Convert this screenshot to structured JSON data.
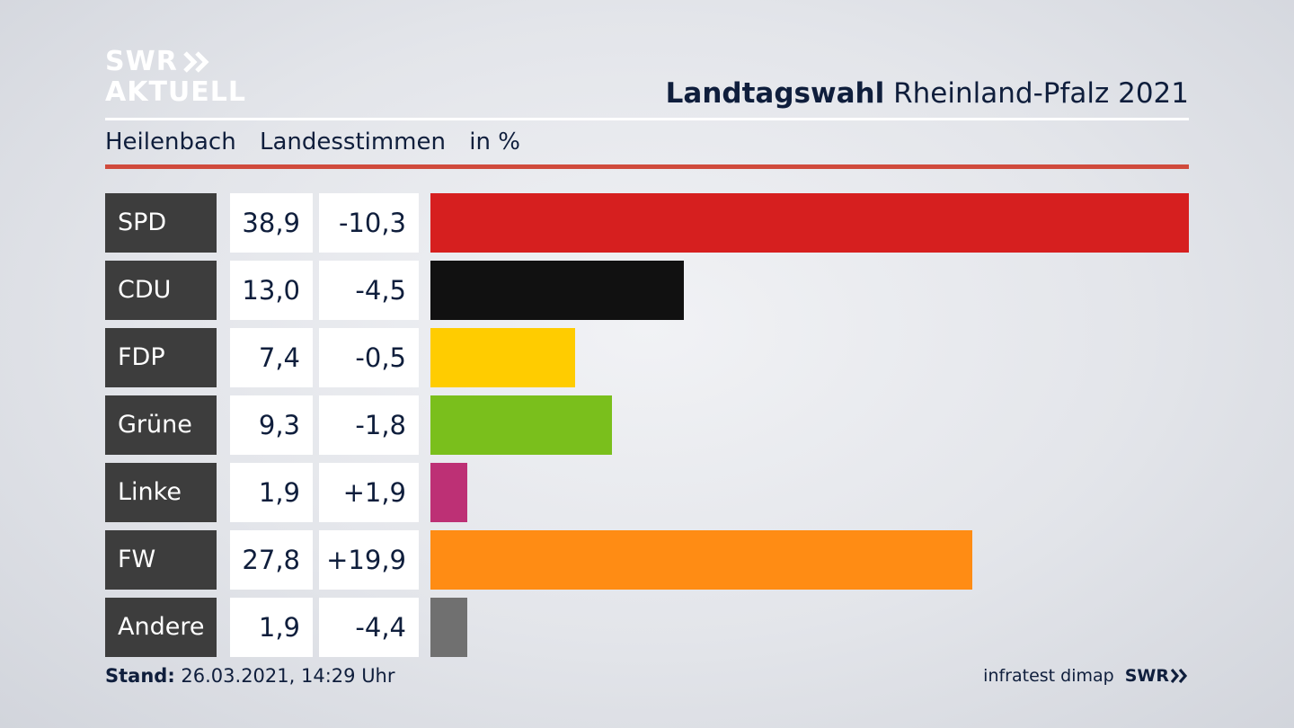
{
  "logo": {
    "line1": "SWR",
    "line2": "AKTUELL"
  },
  "title": {
    "bold": "Landtagswahl",
    "regular": "Rheinland-Pfalz 2021"
  },
  "subtitle": {
    "place": "Heilenbach",
    "kind": "Landesstimmen",
    "unit": "in %"
  },
  "footer": {
    "stand_label": "Stand:",
    "stand_value": "26.03.2021, 14:29 Uhr",
    "source": "infratest dimap",
    "brand": "SWR"
  },
  "chart_data": {
    "type": "bar",
    "orientation": "horizontal",
    "categories": [
      "SPD",
      "CDU",
      "FDP",
      "Grüne",
      "Linke",
      "FW",
      "Andere"
    ],
    "values": [
      38.9,
      13.0,
      7.4,
      9.3,
      1.9,
      27.8,
      1.9
    ],
    "value_labels": [
      "38,9",
      "13,0",
      "7,4",
      "9,3",
      "1,9",
      "27,8",
      "1,9"
    ],
    "diff_labels": [
      "-10,3",
      "-4,5",
      "-0,5",
      "-1,8",
      "+1,9",
      "+19,9",
      "-4,4"
    ],
    "colors": [
      "#d61f1f",
      "#111111",
      "#ffcc00",
      "#7abf1c",
      "#bd3075",
      "#ff8c14",
      "#707070"
    ]
  }
}
